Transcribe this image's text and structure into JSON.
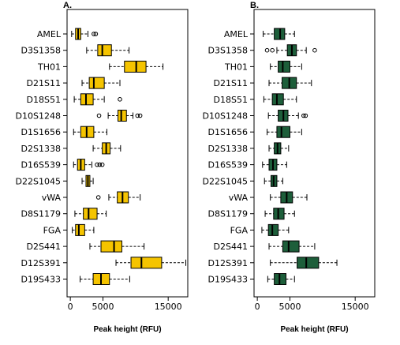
{
  "chart_data": [
    {
      "type": "box",
      "panel_label": "A.",
      "box_color": "#f5c400",
      "xlabel": "Peak height (RFU)",
      "xlim": [
        -500,
        18000
      ],
      "xticks": [
        0,
        5000,
        15000
      ],
      "categories": [
        "AMEL",
        "D3S1358",
        "TH01",
        "D21S11",
        "D18S51",
        "D10S1248",
        "D1S1656",
        "D2S1338",
        "D16S539",
        "D22S1045",
        "vWA",
        "D8S1179",
        "FGA",
        "D2S441",
        "D12S391",
        "D19S433"
      ],
      "boxes": [
        {
          "min": 200,
          "q1": 800,
          "median": 1200,
          "q3": 1600,
          "max": 2700,
          "outliers": [
            3600,
            3900
          ]
        },
        {
          "min": 2500,
          "q1": 4200,
          "median": 4900,
          "q3": 6300,
          "max": 9000,
          "outliers": []
        },
        {
          "min": 6000,
          "q1": 8300,
          "median": 10100,
          "q3": 11600,
          "max": 14200,
          "outliers": []
        },
        {
          "min": 1800,
          "q1": 2900,
          "median": 3600,
          "q3": 5200,
          "max": 7600,
          "outliers": []
        },
        {
          "min": 600,
          "q1": 1600,
          "median": 2400,
          "q3": 3500,
          "max": 5200,
          "outliers": [
            7600
          ]
        },
        {
          "min": 5800,
          "q1": 7300,
          "median": 7800,
          "q3": 8600,
          "max": 9600,
          "outliers": [
            4400,
            10300,
            10700
          ]
        },
        {
          "min": 500,
          "q1": 1600,
          "median": 2500,
          "q3": 3600,
          "max": 5600,
          "outliers": []
        },
        {
          "min": 3500,
          "q1": 4900,
          "median": 5500,
          "q3": 6100,
          "max": 7700,
          "outliers": []
        },
        {
          "min": 500,
          "q1": 1100,
          "median": 1600,
          "q3": 2200,
          "max": 3300,
          "outliers": [
            4100,
            4500,
            4900
          ]
        },
        {
          "min": 1800,
          "q1": 2400,
          "median": 2700,
          "q3": 3000,
          "max": 3500,
          "outliers": []
        },
        {
          "min": 5900,
          "q1": 7200,
          "median": 8000,
          "q3": 8900,
          "max": 10700,
          "outliers": [
            4300
          ]
        },
        {
          "min": 700,
          "q1": 2000,
          "median": 2800,
          "q3": 4100,
          "max": 5500,
          "outliers": []
        },
        {
          "min": 300,
          "q1": 800,
          "median": 1300,
          "q3": 2200,
          "max": 3600,
          "outliers": []
        },
        {
          "min": 3000,
          "q1": 4700,
          "median": 6700,
          "q3": 7900,
          "max": 11300,
          "outliers": []
        },
        {
          "min": 7000,
          "q1": 9300,
          "median": 10900,
          "q3": 14000,
          "max": 17700,
          "outliers": []
        },
        {
          "min": 1500,
          "q1": 3500,
          "median": 4700,
          "q3": 6000,
          "max": 9100,
          "outliers": []
        }
      ]
    },
    {
      "type": "box",
      "panel_label": "B.",
      "box_color": "#1d5e3a",
      "xlabel": "Peak height (RFU)",
      "xlim": [
        -500,
        18000
      ],
      "xticks": [
        0,
        5000,
        15000
      ],
      "categories": [
        "AMEL",
        "D3S1358",
        "TH01",
        "D21S11",
        "D18S51",
        "D10S1248",
        "D1S1656",
        "D2S1338",
        "D16S539",
        "D22S1045",
        "vWA",
        "D8S1179",
        "FGA",
        "D2S441",
        "D12S391",
        "D19S433"
      ],
      "boxes": [
        {
          "min": 900,
          "q1": 2600,
          "median": 3500,
          "q3": 4200,
          "max": 5700,
          "outliers": []
        },
        {
          "min": 3000,
          "q1": 4600,
          "median": 5300,
          "q3": 6000,
          "max": 7500,
          "outliers": [
            1500,
            2300,
            8800
          ]
        },
        {
          "min": 2000,
          "q1": 3200,
          "median": 3900,
          "q3": 5000,
          "max": 6800,
          "outliers": []
        },
        {
          "min": 1800,
          "q1": 3800,
          "median": 4900,
          "q3": 6000,
          "max": 8300,
          "outliers": []
        },
        {
          "min": 1000,
          "q1": 2300,
          "median": 3000,
          "q3": 4000,
          "max": 6000,
          "outliers": []
        },
        {
          "min": 1700,
          "q1": 3200,
          "median": 4000,
          "q3": 4700,
          "max": 6300,
          "outliers": [
            7100,
            7400
          ]
        },
        {
          "min": 1500,
          "q1": 3000,
          "median": 3700,
          "q3": 5000,
          "max": 6800,
          "outliers": []
        },
        {
          "min": 1800,
          "q1": 2600,
          "median": 3100,
          "q3": 3600,
          "max": 4800,
          "outliers": []
        },
        {
          "min": 800,
          "q1": 1800,
          "median": 2400,
          "q3": 3000,
          "max": 4500,
          "outliers": []
        },
        {
          "min": 1100,
          "q1": 2100,
          "median": 2500,
          "q3": 3000,
          "max": 3900,
          "outliers": []
        },
        {
          "min": 2000,
          "q1": 3600,
          "median": 4500,
          "q3": 5400,
          "max": 7600,
          "outliers": []
        },
        {
          "min": 1200,
          "q1": 2500,
          "median": 3200,
          "q3": 4100,
          "max": 5700,
          "outliers": []
        },
        {
          "min": 700,
          "q1": 1700,
          "median": 2300,
          "q3": 3200,
          "max": 4800,
          "outliers": []
        },
        {
          "min": 1800,
          "q1": 3900,
          "median": 4800,
          "q3": 6400,
          "max": 8800,
          "outliers": []
        },
        {
          "min": 2000,
          "q1": 6100,
          "median": 7500,
          "q3": 9400,
          "max": 12200,
          "outliers": []
        },
        {
          "min": 1600,
          "q1": 2600,
          "median": 3400,
          "q3": 4400,
          "max": 5700,
          "outliers": []
        }
      ]
    }
  ]
}
